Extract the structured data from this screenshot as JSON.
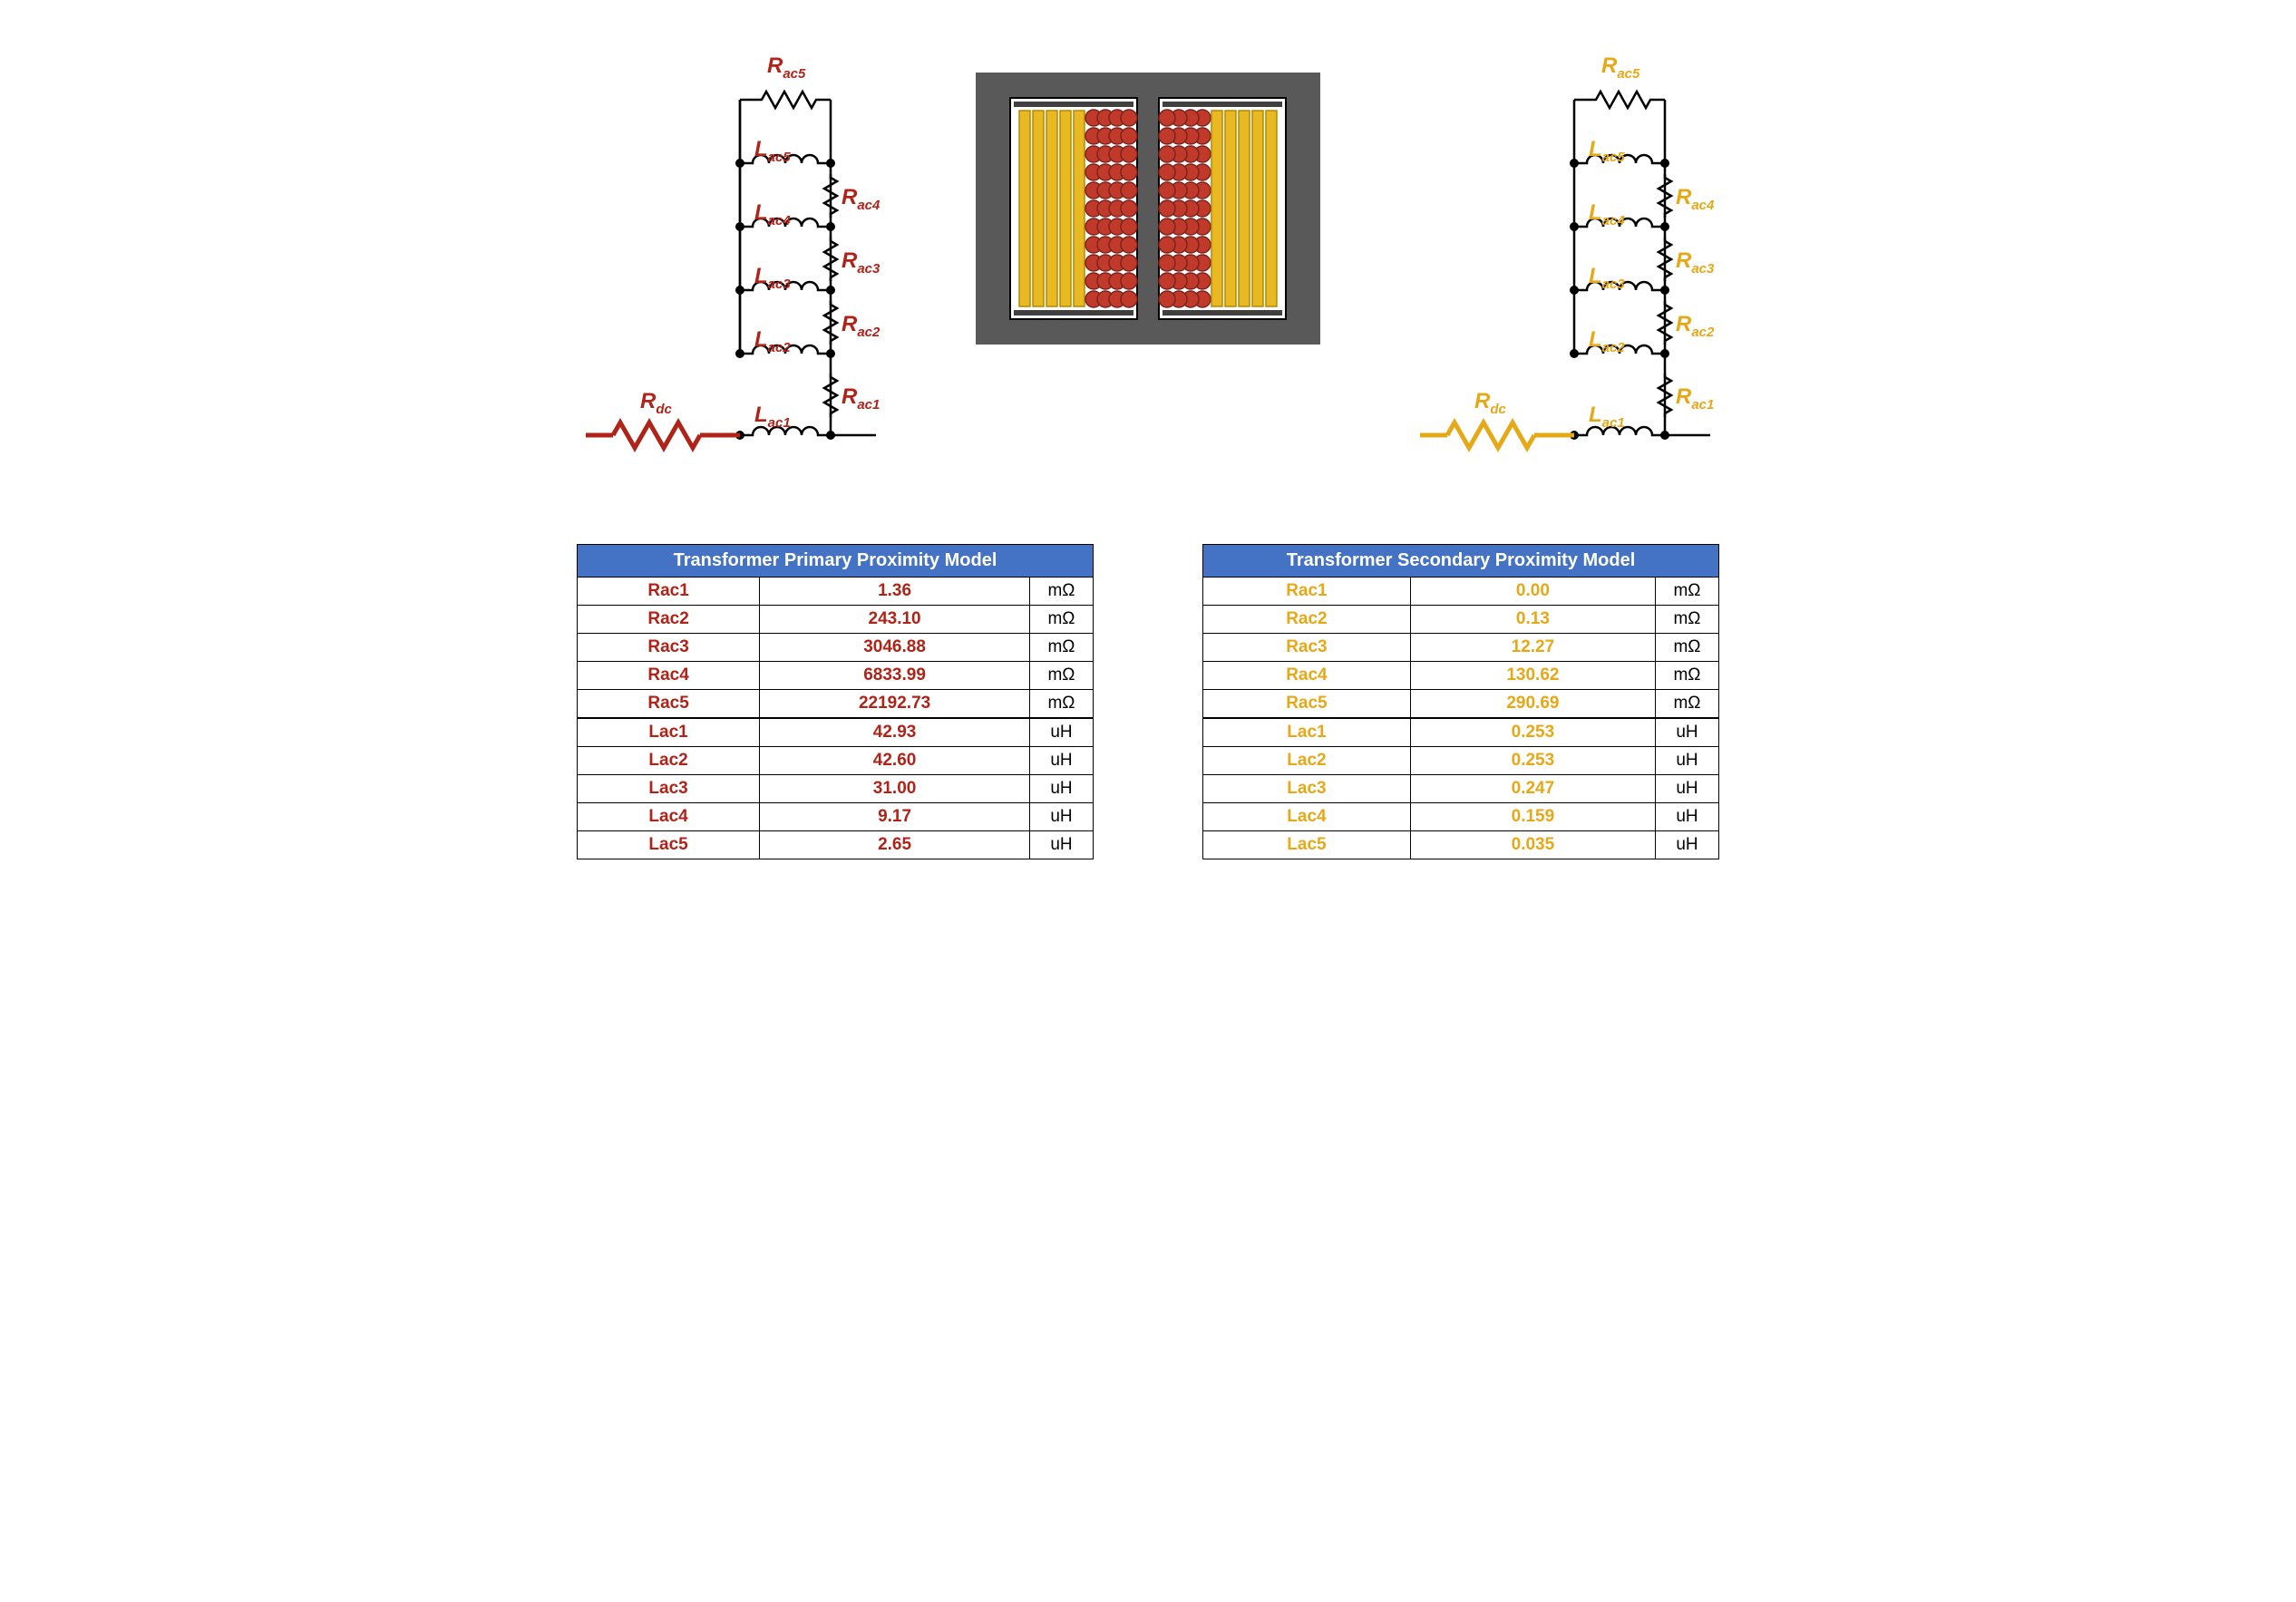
{
  "colors": {
    "primary": "#b02318",
    "secondary": "#e6a817",
    "header_bg": "#4472c4",
    "header_fg": "#ffffff",
    "border": "#000000",
    "core_bg": "#595959",
    "core_window": "#ffffff",
    "winding_primary_fill": "#c0392b",
    "winding_primary_stroke": "#7b241c",
    "winding_secondary_fill": "#e8b923",
    "winding_secondary_stroke": "#b58900",
    "circuit_stroke": "#000000"
  },
  "circuit": {
    "labels": {
      "Rdc": "R",
      "Rdc_sub": "dc",
      "Rac1": "R",
      "Rac1_sub": "ac1",
      "Rac2": "R",
      "Rac2_sub": "ac2",
      "Rac3": "R",
      "Rac3_sub": "ac3",
      "Rac4": "R",
      "Rac4_sub": "ac4",
      "Rac5": "R",
      "Rac5_sub": "ac5",
      "Lac1": "L",
      "Lac1_sub": "ac1",
      "Lac2": "L",
      "Lac2_sub": "ac2",
      "Lac3": "L",
      "Lac3_sub": "ac3",
      "Lac4": "L",
      "Lac4_sub": "ac4",
      "Lac5": "L",
      "Lac5_sub": "ac5"
    }
  },
  "tables": {
    "primary": {
      "title": "Transformer Primary Proximity Model",
      "text_color": "#b02318",
      "rows": [
        {
          "p": "Rac1",
          "v": "1.36",
          "u": "mΩ"
        },
        {
          "p": "Rac2",
          "v": "243.10",
          "u": "mΩ"
        },
        {
          "p": "Rac3",
          "v": "3046.88",
          "u": "mΩ"
        },
        {
          "p": "Rac4",
          "v": "6833.99",
          "u": "mΩ"
        },
        {
          "p": "Rac5",
          "v": "22192.73",
          "u": "mΩ"
        },
        {
          "p": "Lac1",
          "v": "42.93",
          "u": "uH",
          "sep": true
        },
        {
          "p": "Lac2",
          "v": "42.60",
          "u": "uH"
        },
        {
          "p": "Lac3",
          "v": "31.00",
          "u": "uH"
        },
        {
          "p": "Lac4",
          "v": "9.17",
          "u": "uH"
        },
        {
          "p": "Lac5",
          "v": "2.65",
          "u": "uH"
        }
      ]
    },
    "secondary": {
      "title": "Transformer Secondary Proximity Model",
      "text_color": "#e6a817",
      "rows": [
        {
          "p": "Rac1",
          "v": "0.00",
          "u": "mΩ"
        },
        {
          "p": "Rac2",
          "v": "0.13",
          "u": "mΩ"
        },
        {
          "p": "Rac3",
          "v": "12.27",
          "u": "mΩ"
        },
        {
          "p": "Rac4",
          "v": "130.62",
          "u": "mΩ"
        },
        {
          "p": "Rac5",
          "v": "290.69",
          "u": "mΩ"
        },
        {
          "p": "Lac1",
          "v": "0.253",
          "u": "uH",
          "sep": true
        },
        {
          "p": "Lac2",
          "v": "0.253",
          "u": "uH"
        },
        {
          "p": "Lac3",
          "v": "0.247",
          "u": "uH"
        },
        {
          "p": "Lac4",
          "v": "0.159",
          "u": "uH"
        },
        {
          "p": "Lac5",
          "v": "0.035",
          "u": "uH"
        }
      ]
    }
  },
  "core": {
    "window_rows": 11,
    "primary_cols": 4,
    "secondary_bars": 5
  }
}
